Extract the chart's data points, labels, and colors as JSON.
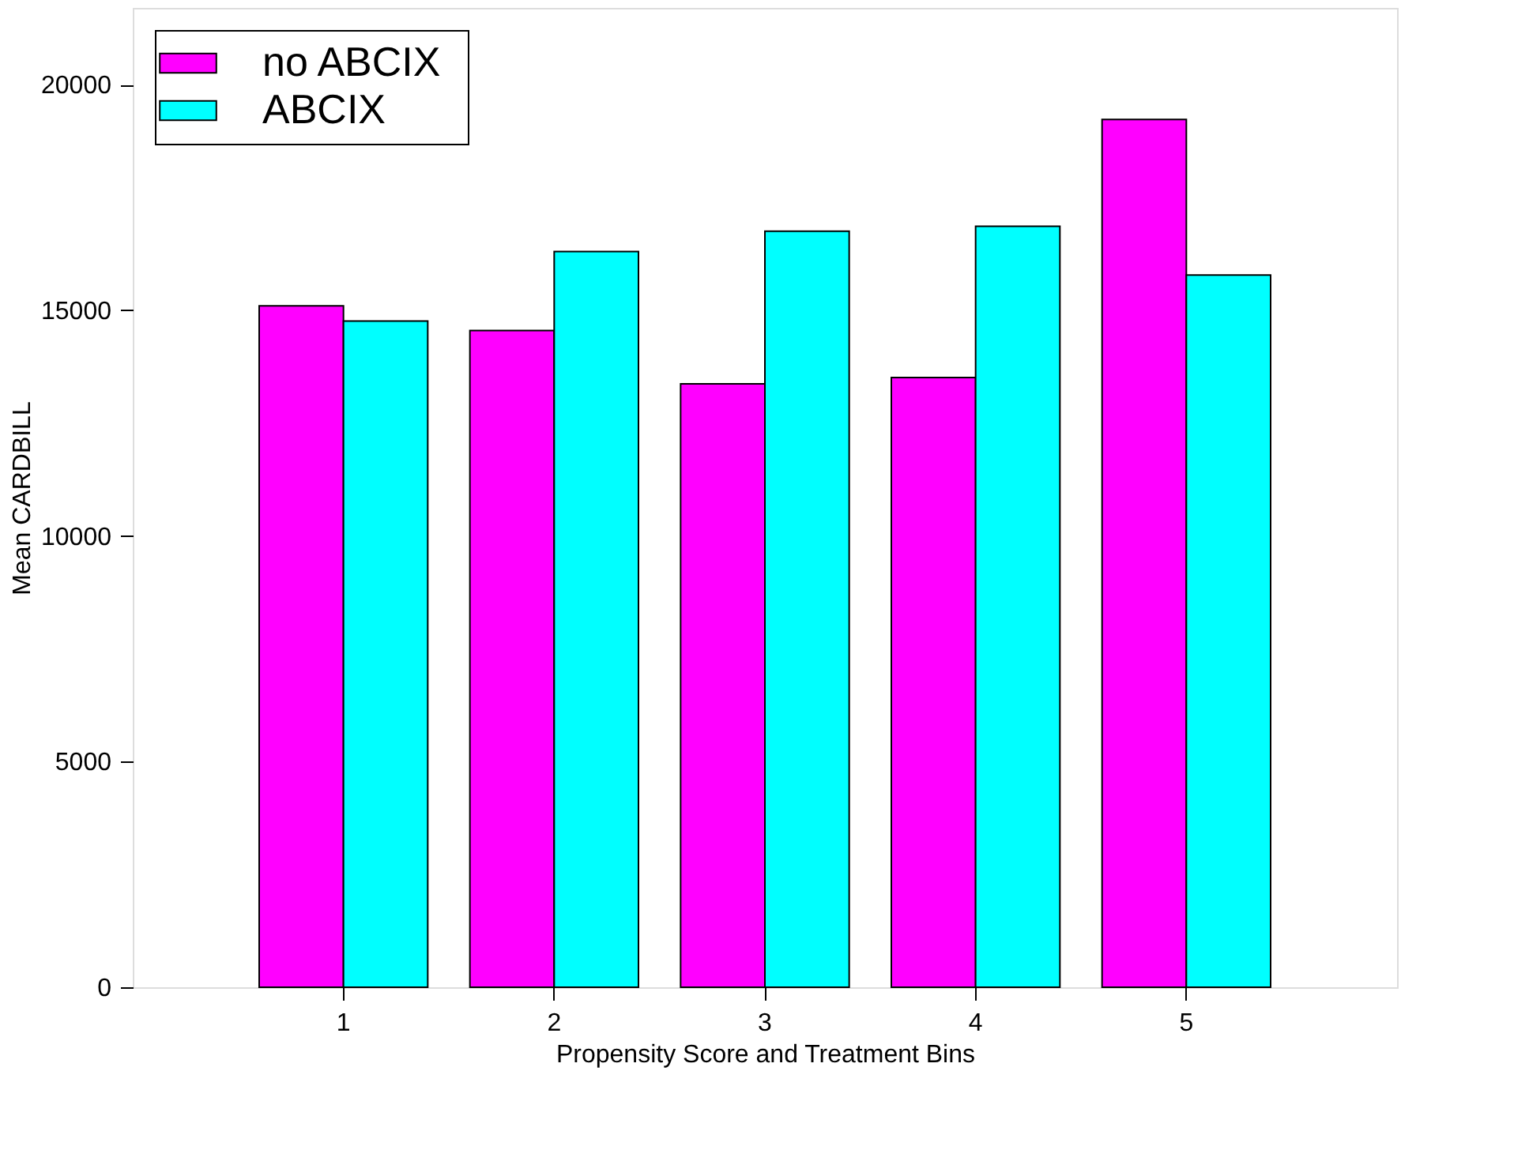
{
  "chart_data": {
    "type": "bar",
    "xlabel": "Propensity Score and Treatment Bins",
    "ylabel": "Mean  CARDBILL",
    "categories": [
      "1",
      "2",
      "3",
      "4",
      "5"
    ],
    "series": [
      {
        "name": "no  ABCIX",
        "color": "#ff00ff",
        "values": [
          15100,
          14550,
          13370,
          13510,
          19230
        ]
      },
      {
        "name": "ABCIX",
        "color": "#00ffff",
        "values": [
          14760,
          16300,
          16750,
          16860,
          15780
        ]
      }
    ],
    "ylim": [
      0,
      21700
    ],
    "yticks": [
      0,
      5000,
      10000,
      15000,
      20000
    ],
    "grid": false,
    "legend": "top left"
  }
}
